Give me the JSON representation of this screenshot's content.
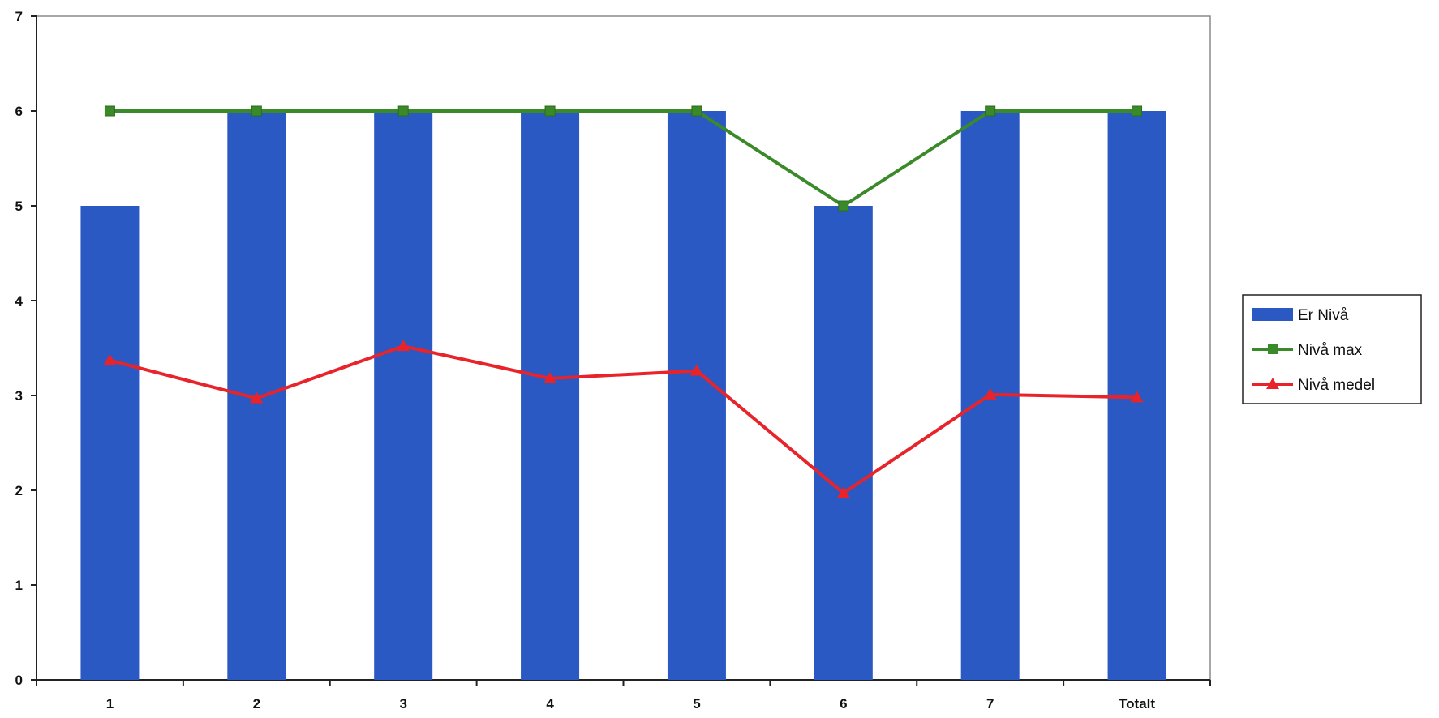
{
  "chart_data": {
    "type": "bar",
    "categories": [
      "1",
      "2",
      "3",
      "4",
      "5",
      "6",
      "7",
      "Totalt"
    ],
    "ylim": [
      0,
      7
    ],
    "yticks": [
      0,
      1,
      2,
      3,
      4,
      5,
      6,
      7
    ],
    "grid": false,
    "legend_position": "right",
    "series": [
      {
        "name": "Er Nivå",
        "kind": "bar",
        "color": "#2b59c3",
        "values": [
          5,
          6,
          6,
          6,
          6,
          5,
          6,
          6
        ]
      },
      {
        "name": "Nivå max",
        "kind": "line",
        "marker": "square",
        "color": "#3a8a2a",
        "values": [
          6,
          6,
          6,
          6,
          6,
          5,
          6,
          6
        ]
      },
      {
        "name": "Nivå medel",
        "kind": "line",
        "marker": "triangle",
        "color": "#e8232a",
        "values": [
          3.37,
          2.97,
          3.52,
          3.18,
          3.26,
          1.97,
          3.01,
          2.98
        ]
      }
    ],
    "title": "",
    "xlabel": "",
    "ylabel": ""
  }
}
